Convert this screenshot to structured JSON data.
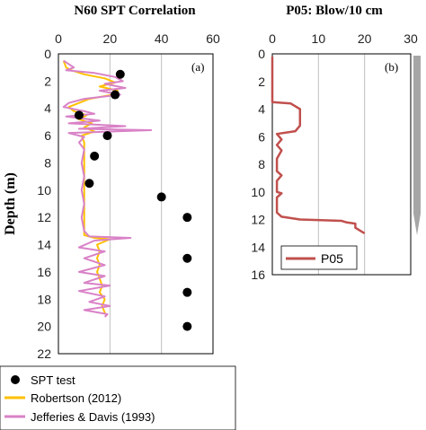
{
  "chart_data": [
    {
      "type": "scatter",
      "panel_label": "(a)",
      "title": "N60 SPT Correlation",
      "ylabel": "Depth (m)",
      "xlabel": "",
      "xlim": [
        0,
        60
      ],
      "ylim": [
        0,
        22
      ],
      "y_inverted": true,
      "x_axis_position": "top",
      "x_ticks": [
        0,
        20,
        40,
        60
      ],
      "y_ticks": [
        0,
        2,
        4,
        6,
        8,
        10,
        12,
        14,
        16,
        18,
        20,
        22
      ],
      "grid": "vertical",
      "series": [
        {
          "name": "SPT test",
          "marker": "circle",
          "color": "#000000",
          "points": [
            [
              24,
              1.5
            ],
            [
              22,
              3.0
            ],
            [
              8,
              4.5
            ],
            [
              19,
              6.0
            ],
            [
              14,
              7.5
            ],
            [
              12,
              9.5
            ],
            [
              40,
              10.5
            ],
            [
              50,
              12.0
            ],
            [
              50,
              15.0
            ],
            [
              50,
              17.5
            ],
            [
              50,
              20.0
            ]
          ]
        },
        {
          "name": "Robertson (2012)",
          "color": "#FFC000",
          "points": [
            [
              2,
              0.5
            ],
            [
              3,
              1.0
            ],
            [
              5,
              1.2
            ],
            [
              10,
              1.5
            ],
            [
              18,
              1.8
            ],
            [
              22,
              2.1
            ],
            [
              16,
              2.4
            ],
            [
              23,
              2.7
            ],
            [
              21,
              3.0
            ],
            [
              12,
              3.3
            ],
            [
              8,
              3.6
            ],
            [
              4,
              3.9
            ],
            [
              6,
              4.2
            ],
            [
              11,
              4.5
            ],
            [
              8,
              4.8
            ],
            [
              13,
              5.1
            ],
            [
              10,
              5.4
            ],
            [
              14,
              5.7
            ],
            [
              9,
              6.0
            ],
            [
              10,
              6.5
            ],
            [
              10,
              7.5
            ],
            [
              10,
              8.5
            ],
            [
              10,
              9.5
            ],
            [
              10,
              10.5
            ],
            [
              10,
              11.5
            ],
            [
              10,
              12.5
            ],
            [
              10,
              13.3
            ],
            [
              14,
              13.5
            ],
            [
              20,
              13.6
            ],
            [
              15,
              14.0
            ],
            [
              16,
              14.5
            ],
            [
              15,
              15.0
            ],
            [
              16,
              15.5
            ],
            [
              15,
              16.0
            ],
            [
              16,
              16.5
            ],
            [
              17,
              17.0
            ],
            [
              16,
              17.5
            ],
            [
              18,
              18.0
            ],
            [
              17,
              18.5
            ],
            [
              18,
              19.0
            ],
            [
              19,
              19.2
            ]
          ]
        },
        {
          "name": "Jefferies & Davis (1993)",
          "color": "#D982C7",
          "points": [
            [
              2,
              0.5
            ],
            [
              6,
              1.0
            ],
            [
              3,
              1.2
            ],
            [
              14,
              1.4
            ],
            [
              22,
              1.7
            ],
            [
              25,
              2.0
            ],
            [
              18,
              2.2
            ],
            [
              26,
              2.5
            ],
            [
              16,
              2.7
            ],
            [
              24,
              3.0
            ],
            [
              10,
              3.3
            ],
            [
              4,
              3.6
            ],
            [
              2,
              3.9
            ],
            [
              10,
              4.2
            ],
            [
              14,
              4.4
            ],
            [
              3,
              4.6
            ],
            [
              16,
              4.9
            ],
            [
              4,
              5.1
            ],
            [
              26,
              5.3
            ],
            [
              8,
              5.5
            ],
            [
              36,
              5.6
            ],
            [
              4,
              5.8
            ],
            [
              10,
              6.1
            ],
            [
              8,
              6.5
            ],
            [
              10,
              7.0
            ],
            [
              9,
              8.0
            ],
            [
              10,
              9.0
            ],
            [
              9,
              10.0
            ],
            [
              10,
              11.0
            ],
            [
              9,
              12.0
            ],
            [
              10,
              13.0
            ],
            [
              12,
              13.4
            ],
            [
              28,
              13.5
            ],
            [
              14,
              13.7
            ],
            [
              8,
              14.2
            ],
            [
              18,
              14.5
            ],
            [
              10,
              15.0
            ],
            [
              18,
              15.5
            ],
            [
              8,
              16.0
            ],
            [
              18,
              16.3
            ],
            [
              10,
              16.8
            ],
            [
              20,
              17.0
            ],
            [
              8,
              17.4
            ],
            [
              18,
              17.8
            ],
            [
              12,
              18.2
            ],
            [
              20,
              18.5
            ],
            [
              10,
              18.8
            ],
            [
              19,
              19.1
            ],
            [
              18,
              19.3
            ]
          ]
        }
      ]
    },
    {
      "type": "line",
      "panel_label": "(b)",
      "title": "P05: Blow/10 cm",
      "xlabel": "",
      "ylabel": "",
      "xlim": [
        0,
        30
      ],
      "ylim": [
        0,
        16
      ],
      "y_inverted": true,
      "x_axis_position": "top",
      "x_ticks": [
        0,
        10,
        20,
        30
      ],
      "y_ticks": [
        0,
        2,
        4,
        6,
        8,
        10,
        12,
        14,
        16
      ],
      "grid": "vertical",
      "legend_position": "bottom",
      "series": [
        {
          "name": "P05",
          "color": "#C0504D",
          "points": [
            [
              0,
              0.2
            ],
            [
              0,
              3.5
            ],
            [
              4,
              3.6
            ],
            [
              5,
              3.8
            ],
            [
              6,
              4.0
            ],
            [
              6,
              4.5
            ],
            [
              6,
              5.2
            ],
            [
              5,
              5.6
            ],
            [
              1,
              5.8
            ],
            [
              2,
              6.2
            ],
            [
              1,
              6.6
            ],
            [
              2,
              7.0
            ],
            [
              1,
              7.6
            ],
            [
              1,
              8.5
            ],
            [
              2,
              8.8
            ],
            [
              1,
              9.2
            ],
            [
              1,
              10.0
            ],
            [
              2,
              10.1
            ],
            [
              1,
              10.4
            ],
            [
              1,
              11.5
            ],
            [
              2,
              11.8
            ],
            [
              6,
              12.0
            ],
            [
              15,
              12.1
            ],
            [
              16,
              12.2
            ],
            [
              18,
              12.3
            ],
            [
              18,
              12.6
            ],
            [
              19,
              12.8
            ],
            [
              20,
              13.0
            ]
          ]
        }
      ]
    }
  ],
  "legend": {
    "entries": [
      {
        "name": "SPT test",
        "marker": "circle",
        "color": "#000000"
      },
      {
        "name": "Robertson (2012)",
        "marker": "line",
        "color": "#FFC000"
      },
      {
        "name": "Jefferies & Davis (1993)",
        "marker": "line",
        "color": "#D982C7"
      }
    ]
  },
  "decor": {
    "probe_color": "#A6A6A6"
  }
}
